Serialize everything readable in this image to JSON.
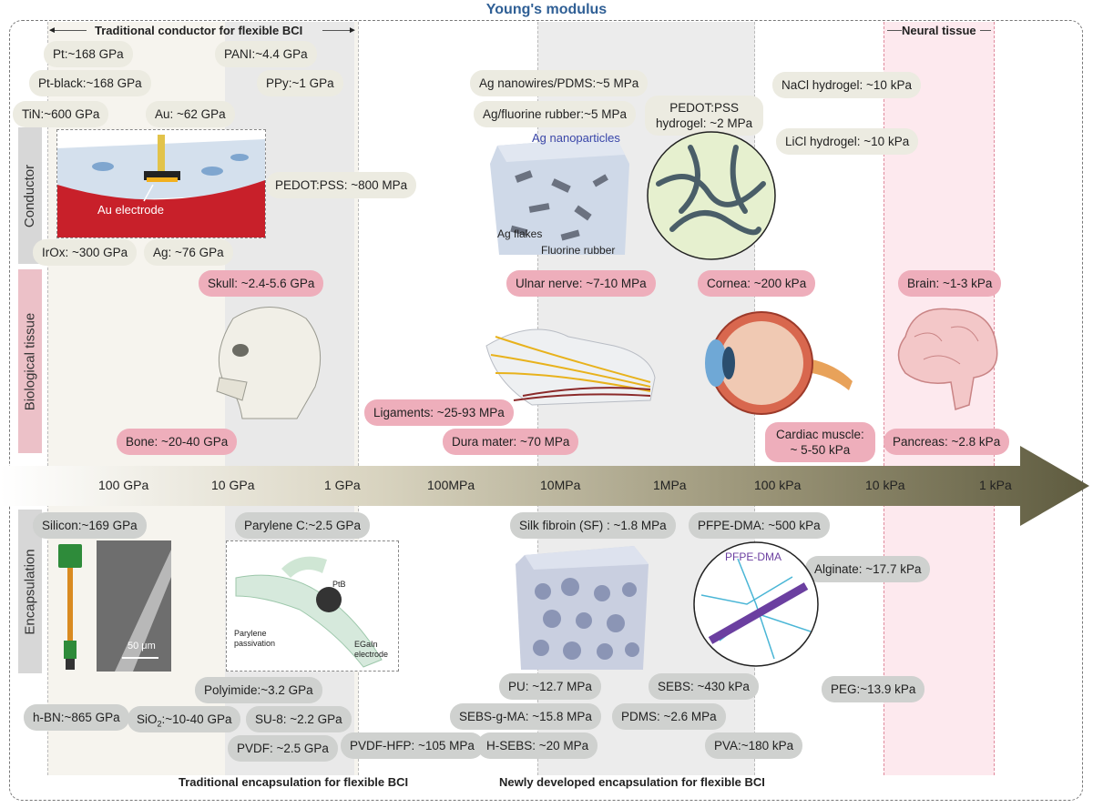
{
  "title": "Young's modulus",
  "headers": {
    "top_left": "Traditional conductor for flexible BCI",
    "top_right": "Neural tissue",
    "bottom_left": "Traditional encapsulation for flexible BCI",
    "bottom_right": "Newly developed encapsulation for flexible BCI"
  },
  "rows": {
    "conductor": "Conductor",
    "biological": "Biological tissue",
    "encapsulation": "Encapsulation"
  },
  "axis_ticks": [
    "100 GPa",
    "10 GPa",
    "1 GPa",
    "100MPa",
    "10MPa",
    "1MPa",
    "100 kPa",
    "10 kPa",
    "1 kPa"
  ],
  "conductor": {
    "pt": "Pt:~168 GPa",
    "pani": "PANI:~4.4 GPa",
    "ptblack": "Pt-black:~168 GPa",
    "ppy": "PPy:~1 GPa",
    "tin": "TiN:~600 GPa",
    "au": "Au: ~62 GPa",
    "pedotpss": "PEDOT:PSS: ~800 MPa",
    "irox": "IrOx: ~300 GPa",
    "ag": "Ag: ~76 GPa",
    "agnw": "Ag nanowires/PDMS:~5 MPa",
    "agfluor": "Ag/fluorine rubber:~5 MPa",
    "pedot_hydrogel_1": "PEDOT:PSS",
    "pedot_hydrogel_2": "hydrogel: ~2 MPa",
    "nacl": "NaCl hydrogel: ~10 kPa",
    "licl": "LiCl hydrogel: ~10 kPa"
  },
  "biological": {
    "skull": "Skull: ~2.4-5.6 GPa",
    "bone": "Bone: ~20-40 GPa",
    "ligaments": "Ligaments: ~25-93 MPa",
    "dura": "Dura mater: ~70 MPa",
    "ulnar": "Ulnar nerve: ~7-10 MPa",
    "cornea": "Cornea: ~200 kPa",
    "cardiac_1": "Cardiac muscle:",
    "cardiac_2": "~ 5-50 kPa",
    "brain": "Brain: ~1-3 kPa",
    "pancreas": "Pancreas: ~2.8 kPa"
  },
  "encapsulation": {
    "silicon": "Silicon:~169 GPa",
    "parylene": "Parylene C:~2.5 GPa",
    "silk": "Silk fibroin (SF) : ~1.8 MPa",
    "pfpe": "PFPE-DMA: ~500 kPa",
    "alginate": "Alginate: ~17.7 kPa",
    "polyimide": "Polyimide:~3.2 GPa",
    "pu": "PU: ~12.7 MPa",
    "sebs": "SEBS: ~430 kPa",
    "peg": "PEG:~13.9 kPa",
    "hbn": "h-BN:~865 GPa",
    "sio2_a": "SiO",
    "sio2_sub": "2",
    "sio2_b": ":~10-40 GPa",
    "su8": "SU-8: ~2.2 GPa",
    "sebsgma": "SEBS-g-MA: ~15.8 MPa",
    "pdms": "PDMS: ~2.6 MPa",
    "pvdf": "PVDF: ~2.5 GPa",
    "pvdfhfp": "PVDF-HFP: ~105 MPa",
    "hsebs": "H-SEBS: ~20 MPa",
    "pva": "PVA:~180 kPa"
  },
  "images": {
    "au_electrode": "Au electrode",
    "ag_nanoparticles": "Ag nanoparticles",
    "ag_flakes": "Ag flakes",
    "fluorine_rubber": "Fluorine rubber",
    "scale_bar": "50 μm",
    "ptb": "PtB",
    "parylene_passivation_1": "Parylene",
    "parylene_passivation_2": "passivation",
    "egain_1": "EGaIn",
    "egain_2": "electrode",
    "pfpe_label": "PFPE-DMA"
  },
  "colors": {
    "conductor_pill": "#ecebe1",
    "bio_pill": "#eeaebb",
    "encap_pill": "#cfd1cf",
    "neural_band": "#fde9ee",
    "title": "#2f5f95"
  }
}
